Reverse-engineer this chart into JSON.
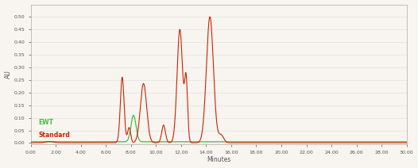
{
  "xlim": [
    0.0,
    30.0
  ],
  "ylim": [
    -0.005,
    0.55
  ],
  "xlabel": "Minutes",
  "ylabel": "AU",
  "xticks": [
    0.0,
    2.0,
    4.0,
    6.0,
    8.0,
    10.0,
    12.0,
    14.0,
    16.0,
    18.0,
    20.0,
    22.0,
    24.0,
    26.0,
    28.0,
    30.0
  ],
  "yticks": [
    0.0,
    0.05,
    0.1,
    0.15,
    0.2,
    0.25,
    0.3,
    0.35,
    0.4,
    0.45,
    0.5
  ],
  "standard_color": "#cc2200",
  "ewt_color": "#44bb44",
  "background_color": "#f8f5f0",
  "legend_ewt": "EWT",
  "legend_standard": "Standard",
  "ewt_baseline": 0.005,
  "standard_baseline": 0.001
}
